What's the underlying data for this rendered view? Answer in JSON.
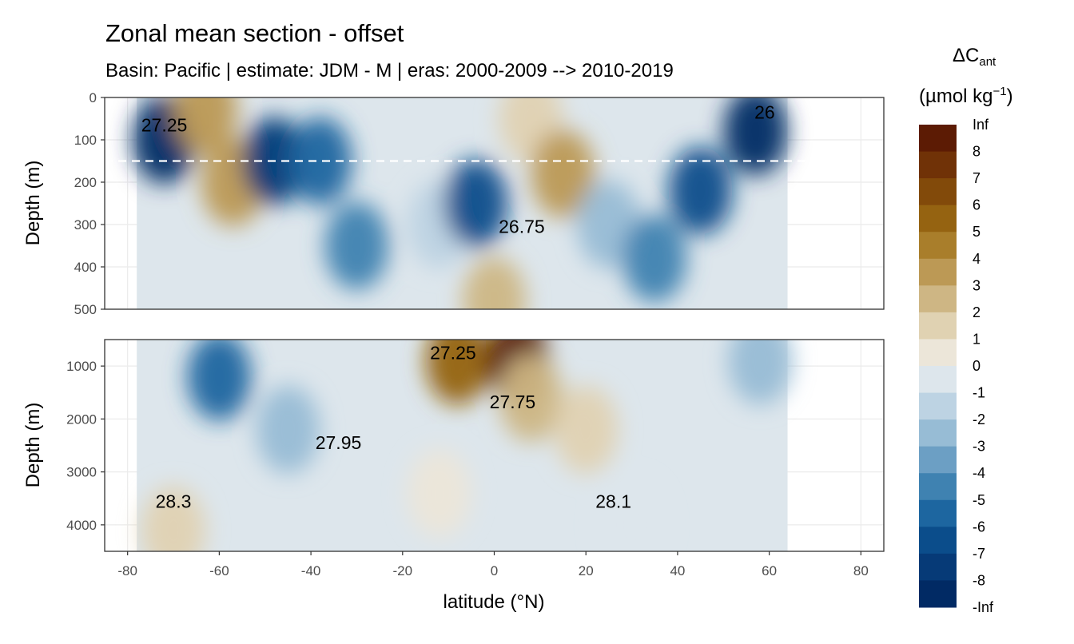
{
  "chart_data": {
    "type": "heatmap",
    "title": "Zonal mean section - offset",
    "subtitle": "Basin: Pacific | estimate: JDM - M | eras: 2000-2009 --> 2010-2019",
    "xlabel": "latitude (°N)",
    "ylabel": "Depth (m)",
    "xlim": [
      -85,
      85
    ],
    "x_ticks": [
      -80,
      -60,
      -40,
      -20,
      0,
      20,
      40,
      60,
      80
    ],
    "data_lat_range": [
      -78,
      64
    ],
    "panels": [
      {
        "name": "upper",
        "ylim": [
          0,
          500
        ],
        "y_ticks": [
          0,
          100,
          200,
          300,
          400,
          500
        ],
        "reference_depth_dashed": 150,
        "cells": [
          {
            "lat": -72,
            "depth": 100,
            "value": -9
          },
          {
            "lat": -63,
            "depth": 30,
            "value": 4
          },
          {
            "lat": -57,
            "depth": 200,
            "value": 4
          },
          {
            "lat": -48,
            "depth": 150,
            "value": -7
          },
          {
            "lat": -38,
            "depth": 150,
            "value": -5
          },
          {
            "lat": -30,
            "depth": 350,
            "value": -4
          },
          {
            "lat": -12,
            "depth": 300,
            "value": -1
          },
          {
            "lat": -4,
            "depth": 250,
            "value": -6
          },
          {
            "lat": 0,
            "depth": 480,
            "value": 3
          },
          {
            "lat": 8,
            "depth": 50,
            "value": 1.5
          },
          {
            "lat": 15,
            "depth": 180,
            "value": 4
          },
          {
            "lat": 25,
            "depth": 300,
            "value": -2
          },
          {
            "lat": 35,
            "depth": 380,
            "value": -4
          },
          {
            "lat": 45,
            "depth": 220,
            "value": -6
          },
          {
            "lat": 57,
            "depth": 80,
            "value": -9
          }
        ],
        "contours": [
          {
            "label": "27.25",
            "lat": -72,
            "depth": 65
          },
          {
            "label": "26.75",
            "lat": 6,
            "depth": 305
          },
          {
            "label": "26",
            "lat": 59,
            "depth": 35
          }
        ]
      },
      {
        "name": "lower",
        "ylim": [
          500,
          4500
        ],
        "y_ticks": [
          1000,
          2000,
          3000,
          4000
        ],
        "cells": [
          {
            "lat": -60,
            "depth": 1200,
            "value": -5
          },
          {
            "lat": -45,
            "depth": 2200,
            "value": -2
          },
          {
            "lat": -70,
            "depth": 4100,
            "value": 1.5
          },
          {
            "lat": -8,
            "depth": 900,
            "value": 6
          },
          {
            "lat": 5,
            "depth": 900,
            "value": 8
          },
          {
            "lat": 8,
            "depth": 1600,
            "value": 3
          },
          {
            "lat": 20,
            "depth": 2200,
            "value": 1.5
          },
          {
            "lat": -12,
            "depth": 3400,
            "value": 0.5
          },
          {
            "lat": 30,
            "depth": 4000,
            "value": -0.5
          },
          {
            "lat": 58,
            "depth": 900,
            "value": -2
          }
        ],
        "contours": [
          {
            "label": "27.25",
            "lat": -9,
            "depth": 750
          },
          {
            "label": "27.75",
            "lat": 4,
            "depth": 1680
          },
          {
            "label": "27.95",
            "lat": -34,
            "depth": 2450
          },
          {
            "label": "28.3",
            "lat": -70,
            "depth": 3560
          },
          {
            "label": "28.1",
            "lat": 26,
            "depth": 3560
          }
        ]
      }
    ],
    "legend": {
      "title": "ΔC",
      "title_subscript": "ant",
      "units": "(µmol kg",
      "units_superscript": "−1",
      "units_close": ")",
      "breaks": [
        "Inf",
        "8",
        "7",
        "6",
        "5",
        "4",
        "3",
        "2",
        "1",
        "0",
        "-1",
        "-2",
        "-3",
        "-4",
        "-5",
        "-6",
        "-7",
        "-8",
        "-Inf"
      ],
      "colors": [
        "#5c1b04",
        "#703207",
        "#824a0a",
        "#956311",
        "#a97e2b",
        "#bc9955",
        "#ceb684",
        "#e0d2b2",
        "#ece6d9",
        "#dde6ec",
        "#bdd3e3",
        "#97bcd5",
        "#6c9fc4",
        "#3f82b1",
        "#1d66a0",
        "#0b4d8b",
        "#063a77",
        "#012a64"
      ]
    }
  }
}
